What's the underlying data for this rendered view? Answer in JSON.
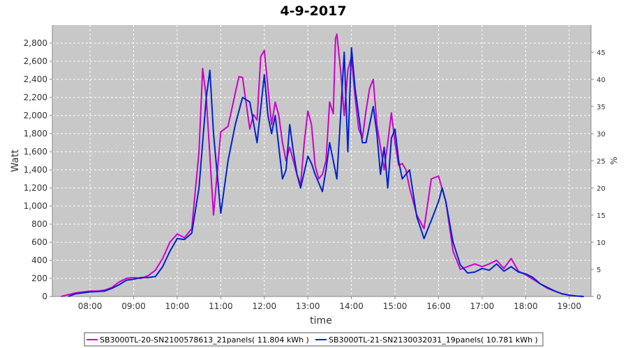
{
  "chart_data": {
    "type": "line",
    "title": "4-9-2017",
    "xlabel": "time",
    "ylabel": "Watt",
    "y2label": "%",
    "ylim": [
      0,
      3000
    ],
    "y2lim": [
      0,
      50
    ],
    "xlim": [
      "07:08",
      "19:30"
    ],
    "grid": true,
    "legend_position": "bottom",
    "x_ticks": [
      "08:00",
      "09:00",
      "10:00",
      "11:00",
      "12:00",
      "13:00",
      "14:00",
      "15:00",
      "16:00",
      "17:00",
      "18:00",
      "19:00"
    ],
    "y_ticks": [
      "0",
      "200",
      "400",
      "600",
      "800",
      "1,000",
      "1,200",
      "1,400",
      "1,600",
      "1,800",
      "2,000",
      "2,200",
      "2,400",
      "2,600",
      "2,800"
    ],
    "y2_ticks": [
      "0",
      "5",
      "10",
      "15",
      "20",
      "25",
      "30",
      "35",
      "40",
      "45"
    ],
    "series": [
      {
        "name": "SB3000TL-20-SN2100578613_21panels( 11.804 kWh )",
        "color": "#cc00cc",
        "points": [
          [
            "07:20",
            0
          ],
          [
            "07:30",
            20
          ],
          [
            "07:40",
            40
          ],
          [
            "07:50",
            50
          ],
          [
            "08:00",
            60
          ],
          [
            "08:10",
            60
          ],
          [
            "08:20",
            70
          ],
          [
            "08:30",
            100
          ],
          [
            "08:40",
            160
          ],
          [
            "08:50",
            200
          ],
          [
            "09:00",
            210
          ],
          [
            "09:10",
            200
          ],
          [
            "09:20",
            230
          ],
          [
            "09:30",
            290
          ],
          [
            "09:40",
            420
          ],
          [
            "09:50",
            600
          ],
          [
            "10:00",
            690
          ],
          [
            "10:10",
            650
          ],
          [
            "10:20",
            750
          ],
          [
            "10:30",
            1600
          ],
          [
            "10:35",
            2520
          ],
          [
            "10:40",
            2200
          ],
          [
            "10:50",
            900
          ],
          [
            "11:00",
            1820
          ],
          [
            "11:10",
            1880
          ],
          [
            "11:20",
            2250
          ],
          [
            "11:25",
            2430
          ],
          [
            "11:30",
            2420
          ],
          [
            "11:40",
            1850
          ],
          [
            "11:45",
            2010
          ],
          [
            "11:50",
            1950
          ],
          [
            "11:55",
            2650
          ],
          [
            "12:00",
            2720
          ],
          [
            "12:10",
            1900
          ],
          [
            "12:15",
            2150
          ],
          [
            "12:20",
            2000
          ],
          [
            "12:25",
            1700
          ],
          [
            "12:30",
            1500
          ],
          [
            "12:35",
            1650
          ],
          [
            "12:40",
            1500
          ],
          [
            "12:45",
            1350
          ],
          [
            "12:50",
            1230
          ],
          [
            "12:55",
            1700
          ],
          [
            "13:00",
            2050
          ],
          [
            "13:05",
            1900
          ],
          [
            "13:10",
            1450
          ],
          [
            "13:15",
            1300
          ],
          [
            "13:20",
            1350
          ],
          [
            "13:25",
            1500
          ],
          [
            "13:30",
            2150
          ],
          [
            "13:35",
            2020
          ],
          [
            "13:38",
            2850
          ],
          [
            "13:40",
            2900
          ],
          [
            "13:45",
            2500
          ],
          [
            "13:50",
            2000
          ],
          [
            "13:55",
            2500
          ],
          [
            "14:00",
            2650
          ],
          [
            "14:05",
            2200
          ],
          [
            "14:10",
            1850
          ],
          [
            "14:15",
            1750
          ],
          [
            "14:20",
            2050
          ],
          [
            "14:25",
            2300
          ],
          [
            "14:30",
            2400
          ],
          [
            "14:35",
            1900
          ],
          [
            "14:40",
            1650
          ],
          [
            "14:45",
            1400
          ],
          [
            "14:50",
            1700
          ],
          [
            "14:55",
            2030
          ],
          [
            "15:00",
            1700
          ],
          [
            "15:05",
            1450
          ],
          [
            "15:10",
            1470
          ],
          [
            "15:15",
            1400
          ],
          [
            "15:20",
            1200
          ],
          [
            "15:30",
            900
          ],
          [
            "15:40",
            750
          ],
          [
            "15:50",
            1300
          ],
          [
            "16:00",
            1330
          ],
          [
            "16:10",
            1050
          ],
          [
            "16:20",
            500
          ],
          [
            "16:30",
            300
          ],
          [
            "16:40",
            330
          ],
          [
            "16:50",
            360
          ],
          [
            "17:00",
            330
          ],
          [
            "17:10",
            360
          ],
          [
            "17:20",
            400
          ],
          [
            "17:30",
            310
          ],
          [
            "17:40",
            420
          ],
          [
            "17:50",
            280
          ],
          [
            "18:00",
            240
          ],
          [
            "18:10",
            190
          ],
          [
            "18:20",
            140
          ],
          [
            "18:30",
            90
          ],
          [
            "18:40",
            60
          ],
          [
            "18:50",
            30
          ],
          [
            "19:00",
            15
          ],
          [
            "19:10",
            5
          ],
          [
            "19:20",
            0
          ]
        ]
      },
      {
        "name": "SB3000TL-21-SN2130032031_19panels( 10.781 kWh )",
        "color": "#0022cc",
        "points": [
          [
            "07:30",
            0
          ],
          [
            "07:40",
            30
          ],
          [
            "07:50",
            40
          ],
          [
            "08:00",
            50
          ],
          [
            "08:10",
            55
          ],
          [
            "08:20",
            60
          ],
          [
            "08:30",
            90
          ],
          [
            "08:40",
            130
          ],
          [
            "08:50",
            180
          ],
          [
            "09:00",
            190
          ],
          [
            "09:10",
            210
          ],
          [
            "09:20",
            210
          ],
          [
            "09:30",
            220
          ],
          [
            "09:40",
            330
          ],
          [
            "09:50",
            500
          ],
          [
            "10:00",
            640
          ],
          [
            "10:10",
            630
          ],
          [
            "10:20",
            700
          ],
          [
            "10:30",
            1200
          ],
          [
            "10:40",
            2200
          ],
          [
            "10:45",
            2500
          ],
          [
            "10:50",
            1800
          ],
          [
            "11:00",
            920
          ],
          [
            "11:10",
            1500
          ],
          [
            "11:20",
            1900
          ],
          [
            "11:30",
            2200
          ],
          [
            "11:40",
            2150
          ],
          [
            "11:50",
            1700
          ],
          [
            "12:00",
            2450
          ],
          [
            "12:05",
            2000
          ],
          [
            "12:10",
            1800
          ],
          [
            "12:15",
            2000
          ],
          [
            "12:20",
            1650
          ],
          [
            "12:25",
            1300
          ],
          [
            "12:30",
            1400
          ],
          [
            "12:35",
            1900
          ],
          [
            "12:40",
            1600
          ],
          [
            "12:45",
            1350
          ],
          [
            "12:50",
            1200
          ],
          [
            "13:00",
            1550
          ],
          [
            "13:05",
            1470
          ],
          [
            "13:10",
            1350
          ],
          [
            "13:20",
            1160
          ],
          [
            "13:25",
            1400
          ],
          [
            "13:30",
            1700
          ],
          [
            "13:35",
            1500
          ],
          [
            "13:40",
            1300
          ],
          [
            "13:45",
            2000
          ],
          [
            "13:50",
            2700
          ],
          [
            "13:55",
            1600
          ],
          [
            "14:00",
            2750
          ],
          [
            "14:05",
            2300
          ],
          [
            "14:10",
            2000
          ],
          [
            "14:15",
            1700
          ],
          [
            "14:20",
            1700
          ],
          [
            "14:30",
            2100
          ],
          [
            "14:35",
            1800
          ],
          [
            "14:40",
            1350
          ],
          [
            "14:45",
            1650
          ],
          [
            "14:50",
            1200
          ],
          [
            "14:55",
            1750
          ],
          [
            "15:00",
            1850
          ],
          [
            "15:05",
            1500
          ],
          [
            "15:10",
            1300
          ],
          [
            "15:20",
            1400
          ],
          [
            "15:30",
            880
          ],
          [
            "15:40",
            640
          ],
          [
            "15:50",
            840
          ],
          [
            "16:00",
            1050
          ],
          [
            "16:05",
            1200
          ],
          [
            "16:10",
            1050
          ],
          [
            "16:20",
            600
          ],
          [
            "16:30",
            350
          ],
          [
            "16:40",
            260
          ],
          [
            "16:50",
            270
          ],
          [
            "17:00",
            310
          ],
          [
            "17:10",
            290
          ],
          [
            "17:20",
            360
          ],
          [
            "17:30",
            280
          ],
          [
            "17:40",
            330
          ],
          [
            "17:50",
            270
          ],
          [
            "18:00",
            250
          ],
          [
            "18:10",
            210
          ],
          [
            "18:20",
            140
          ],
          [
            "18:30",
            100
          ],
          [
            "18:40",
            60
          ],
          [
            "18:50",
            30
          ],
          [
            "19:00",
            15
          ],
          [
            "19:10",
            5
          ],
          [
            "19:20",
            0
          ]
        ]
      }
    ]
  }
}
